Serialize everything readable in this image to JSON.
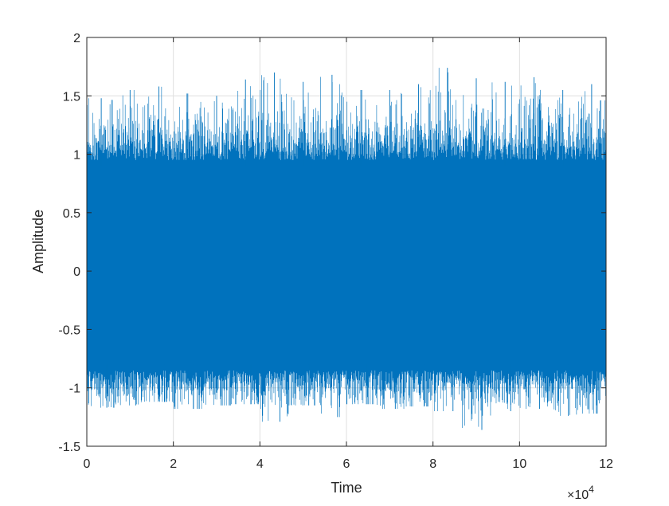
{
  "chart_data": {
    "type": "line",
    "title": "",
    "xlabel": "Time",
    "ylabel": "Amplitude",
    "xlim": [
      0,
      120000
    ],
    "ylim": [
      -1.5,
      2
    ],
    "x_exponent_label": "×10",
    "x_exponent_power": "4",
    "x_ticks": [
      {
        "value": 0,
        "label": "0"
      },
      {
        "value": 20000,
        "label": "2"
      },
      {
        "value": 40000,
        "label": "4"
      },
      {
        "value": 60000,
        "label": "6"
      },
      {
        "value": 80000,
        "label": "8"
      },
      {
        "value": 100000,
        "label": "10"
      },
      {
        "value": 120000,
        "label": "12"
      }
    ],
    "y_ticks": [
      {
        "value": 2,
        "label": "2"
      },
      {
        "value": 1.5,
        "label": "1.5"
      },
      {
        "value": 1,
        "label": "1"
      },
      {
        "value": 0.5,
        "label": "0.5"
      },
      {
        "value": 0,
        "label": "0"
      },
      {
        "value": -0.5,
        "label": "-0.5"
      },
      {
        "value": -1,
        "label": "-1"
      },
      {
        "value": -1.5,
        "label": "-1.5"
      }
    ],
    "grid": true,
    "series": [
      {
        "color": "#0072BD",
        "description_free": true,
        "x_start": 0,
        "x_end": 120000,
        "approx_body_range": [
          -0.85,
          0.95
        ],
        "approx_peaks_max": 1.74,
        "approx_peaks_min": -1.36,
        "envelope_max": [
          1.48,
          1.55,
          1.58,
          1.52,
          1.5,
          1.64,
          1.7,
          1.62,
          1.68,
          1.55,
          1.55,
          1.6,
          1.74,
          1.65,
          1.62,
          1.66,
          1.55,
          1.6
        ],
        "envelope_min": [
          -1.17,
          -1.15,
          -1.12,
          -1.18,
          -1.15,
          -1.14,
          -1.29,
          -1.15,
          -1.25,
          -1.14,
          -1.18,
          -1.16,
          -1.2,
          -1.36,
          -1.2,
          -1.18,
          -1.24,
          -1.22
        ]
      }
    ],
    "colors": {
      "line": "#0072BD",
      "axes": "#262626",
      "grid": "#dfdfdf",
      "background": "#ffffff"
    }
  }
}
